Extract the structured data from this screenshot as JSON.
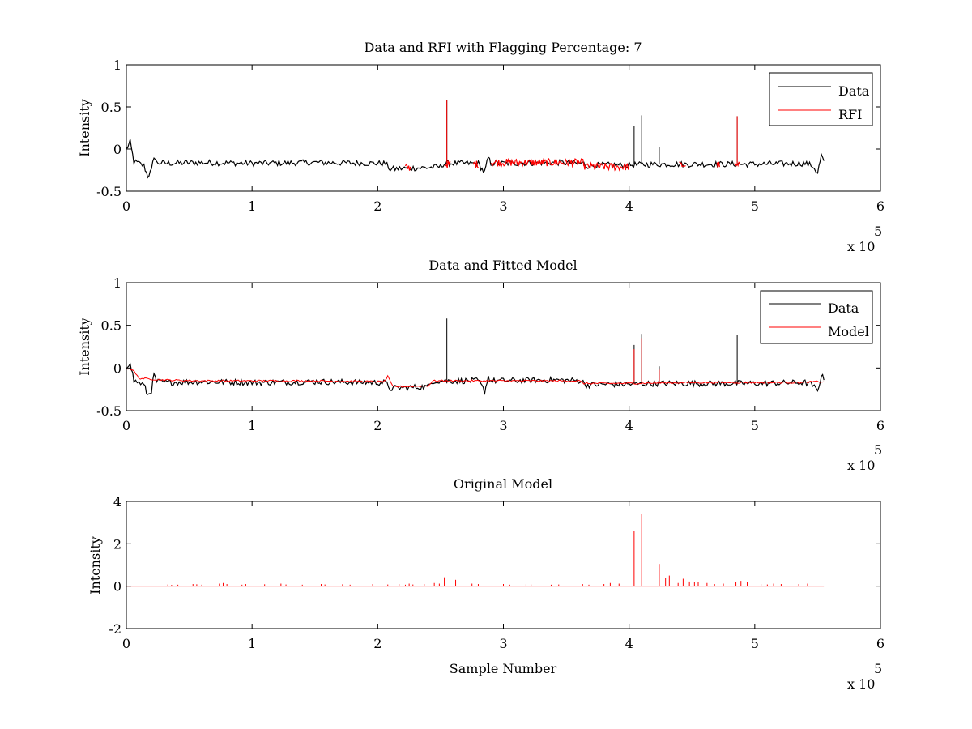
{
  "chart_data": [
    {
      "type": "line",
      "title": "Data and RFI with Flagging Percentage: 7",
      "xlabel": "",
      "ylabel": "Intensity",
      "xlim": [
        0,
        600000
      ],
      "ylim": [
        -0.5,
        1
      ],
      "xticks": [
        0,
        100000,
        200000,
        300000,
        400000,
        500000,
        600000
      ],
      "xtick_labels": [
        "0",
        "1",
        "2",
        "3",
        "4",
        "5",
        "6"
      ],
      "yticks": [
        -0.5,
        0,
        0.5,
        1
      ],
      "ytick_labels": [
        "-0.5",
        "0",
        "0.5",
        "1"
      ],
      "x_multiplier_label": "x 10",
      "x_multiplier_exp": "5",
      "legend": [
        "Data",
        "RFI"
      ],
      "legend_position": "top-right",
      "series": [
        {
          "name": "Data",
          "color": "#000000",
          "x": [
            0,
            3000,
            6000,
            10000,
            14000,
            17000,
            20000,
            22000,
            24000,
            30000,
            60000,
            100000,
            150000,
            200000,
            206000,
            210000,
            220000,
            240000,
            250000,
            252000,
            255000,
            258000,
            270000,
            280000,
            283000,
            285000,
            288000,
            290000,
            300000,
            340000,
            364000,
            366000,
            380000,
            400000,
            420000,
            450000,
            500000,
            540000,
            546000,
            550000,
            553000,
            555000
          ],
          "values": [
            0.0,
            0.08,
            -0.15,
            -0.17,
            -0.2,
            -0.32,
            -0.26,
            -0.08,
            -0.16,
            -0.17,
            -0.16,
            -0.17,
            -0.16,
            -0.17,
            -0.17,
            -0.24,
            -0.23,
            -0.22,
            -0.21,
            -0.18,
            -0.17,
            -0.17,
            -0.17,
            -0.17,
            -0.24,
            -0.28,
            -0.1,
            -0.17,
            -0.17,
            -0.16,
            -0.17,
            -0.2,
            -0.19,
            -0.19,
            -0.18,
            -0.18,
            -0.18,
            -0.17,
            -0.2,
            -0.28,
            -0.08,
            -0.14
          ],
          "spikes": [
            [
              255000,
              0.58
            ],
            [
              404000,
              0.27
            ],
            [
              410000,
              0.4
            ],
            [
              424000,
              0.02
            ],
            [
              486000,
              0.39
            ]
          ]
        },
        {
          "name": "RFI",
          "color": "#ff0000",
          "segments": [
            [
              222000,
              226000,
              -0.22
            ],
            [
              254000,
              258000,
              -0.18
            ],
            [
              276000,
              280000,
              -0.18
            ],
            [
              290000,
              364000,
              -0.16
            ],
            [
              364000,
              400000,
              -0.21
            ],
            [
              440000,
              445000,
              -0.19
            ],
            [
              470000,
              472000,
              -0.19
            ],
            [
              484000,
              488000,
              -0.2
            ]
          ],
          "spikes": [
            [
              255000,
              0.58
            ],
            [
              486000,
              0.39
            ]
          ]
        }
      ]
    },
    {
      "type": "line",
      "title": "Data and Fitted Model",
      "xlabel": "",
      "ylabel": "Intensity",
      "xlim": [
        0,
        600000
      ],
      "ylim": [
        -0.5,
        1
      ],
      "xticks": [
        0,
        100000,
        200000,
        300000,
        400000,
        500000,
        600000
      ],
      "xtick_labels": [
        "0",
        "1",
        "2",
        "3",
        "4",
        "5",
        "6"
      ],
      "yticks": [
        -0.5,
        0,
        0.5,
        1
      ],
      "ytick_labels": [
        "-0.5",
        "0",
        "0.5",
        "1"
      ],
      "x_multiplier_label": "x 10",
      "x_multiplier_exp": "5",
      "legend": [
        "Data",
        "Model"
      ],
      "legend_position": "top-right",
      "series": [
        {
          "name": "Data",
          "color": "#000000",
          "x": [
            0,
            3000,
            6000,
            10000,
            14000,
            17000,
            20000,
            22000,
            24000,
            30000,
            60000,
            100000,
            150000,
            200000,
            206000,
            210000,
            220000,
            240000,
            244000,
            250000,
            255000,
            270000,
            280000,
            283000,
            285000,
            288000,
            290000,
            300000,
            340000,
            362000,
            366000,
            380000,
            400000,
            420000,
            450000,
            500000,
            540000,
            546000,
            550000,
            553000,
            555000
          ],
          "values": [
            0.0,
            0.08,
            -0.15,
            -0.17,
            -0.2,
            -0.32,
            -0.26,
            -0.08,
            -0.16,
            -0.17,
            -0.16,
            -0.17,
            -0.16,
            -0.17,
            -0.17,
            -0.24,
            -0.23,
            -0.22,
            -0.15,
            -0.15,
            -0.15,
            -0.15,
            -0.15,
            -0.22,
            -0.28,
            -0.1,
            -0.15,
            -0.15,
            -0.14,
            -0.15,
            -0.2,
            -0.19,
            -0.19,
            -0.18,
            -0.18,
            -0.18,
            -0.17,
            -0.2,
            -0.28,
            -0.08,
            -0.14
          ],
          "spikes": [
            [
              255000,
              0.58
            ],
            [
              404000,
              0.27
            ],
            [
              410000,
              0.4
            ],
            [
              424000,
              0.02
            ],
            [
              486000,
              0.39
            ]
          ]
        },
        {
          "name": "Model",
          "color": "#ff0000",
          "x": [
            0,
            5000,
            10000,
            30000,
            60000,
            100000,
            150000,
            205000,
            208000,
            212000,
            240000,
            244000,
            300000,
            360000,
            364000,
            400000,
            450000,
            500000,
            540000,
            548000,
            555000
          ],
          "values": [
            0.0,
            -0.02,
            -0.12,
            -0.14,
            -0.15,
            -0.15,
            -0.15,
            -0.16,
            -0.1,
            -0.22,
            -0.21,
            -0.15,
            -0.15,
            -0.15,
            -0.18,
            -0.18,
            -0.17,
            -0.17,
            -0.17,
            -0.16,
            -0.16
          ],
          "spikes": [
            [
              404000,
              0.22
            ],
            [
              410000,
              0.35
            ],
            [
              424000,
              -0.02
            ]
          ]
        }
      ]
    },
    {
      "type": "line",
      "title": "Original Model",
      "xlabel": "Sample Number",
      "ylabel": "Intensity",
      "xlim": [
        0,
        600000
      ],
      "ylim": [
        -2,
        4
      ],
      "xticks": [
        0,
        100000,
        200000,
        300000,
        400000,
        500000,
        600000
      ],
      "xtick_labels": [
        "0",
        "1",
        "2",
        "3",
        "4",
        "5",
        "6"
      ],
      "yticks": [
        -2,
        0,
        2,
        4
      ],
      "ytick_labels": [
        "-2",
        "0",
        "2",
        "4"
      ],
      "x_multiplier_label": "x 10",
      "x_multiplier_exp": "5",
      "legend": [],
      "series": [
        {
          "name": "Original Model",
          "color": "#ff0000",
          "baseline": 0,
          "x_end": 555000,
          "spikes": [
            [
              33000,
              0.08
            ],
            [
              36000,
              0.06
            ],
            [
              41000,
              0.07
            ],
            [
              53000,
              0.1
            ],
            [
              56000,
              0.09
            ],
            [
              60000,
              0.07
            ],
            [
              74000,
              0.12
            ],
            [
              77000,
              0.15
            ],
            [
              80000,
              0.1
            ],
            [
              92000,
              0.07
            ],
            [
              95000,
              0.1
            ],
            [
              110000,
              0.09
            ],
            [
              123000,
              0.12
            ],
            [
              127000,
              0.08
            ],
            [
              140000,
              0.07
            ],
            [
              155000,
              0.1
            ],
            [
              158000,
              0.08
            ],
            [
              172000,
              0.09
            ],
            [
              178000,
              0.07
            ],
            [
              196000,
              0.1
            ],
            [
              208000,
              0.08
            ],
            [
              217000,
              0.1
            ],
            [
              222000,
              0.07
            ],
            [
              225000,
              0.12
            ],
            [
              228000,
              0.08
            ],
            [
              237000,
              0.1
            ],
            [
              245000,
              0.15
            ],
            [
              249000,
              0.12
            ],
            [
              253000,
              0.42
            ],
            [
              262000,
              0.3
            ],
            [
              275000,
              0.12
            ],
            [
              280000,
              0.1
            ],
            [
              300000,
              0.1
            ],
            [
              305000,
              0.07
            ],
            [
              318000,
              0.09
            ],
            [
              322000,
              0.08
            ],
            [
              338000,
              0.07
            ],
            [
              344000,
              0.08
            ],
            [
              363000,
              0.1
            ],
            [
              368000,
              0.07
            ],
            [
              380000,
              0.1
            ],
            [
              385000,
              0.15
            ],
            [
              392000,
              0.12
            ],
            [
              404000,
              2.6
            ],
            [
              410000,
              3.4
            ],
            [
              424000,
              1.05
            ],
            [
              429000,
              0.4
            ],
            [
              432000,
              0.5
            ],
            [
              439000,
              0.15
            ],
            [
              443000,
              0.35
            ],
            [
              448000,
              0.22
            ],
            [
              452000,
              0.2
            ],
            [
              455000,
              0.18
            ],
            [
              462000,
              0.15
            ],
            [
              468000,
              0.1
            ],
            [
              475000,
              0.12
            ],
            [
              485000,
              0.2
            ],
            [
              489000,
              0.25
            ],
            [
              494000,
              0.18
            ],
            [
              505000,
              0.1
            ],
            [
              510000,
              0.08
            ],
            [
              515000,
              0.12
            ],
            [
              521000,
              0.1
            ],
            [
              535000,
              0.1
            ],
            [
              542000,
              0.12
            ]
          ]
        }
      ]
    }
  ]
}
